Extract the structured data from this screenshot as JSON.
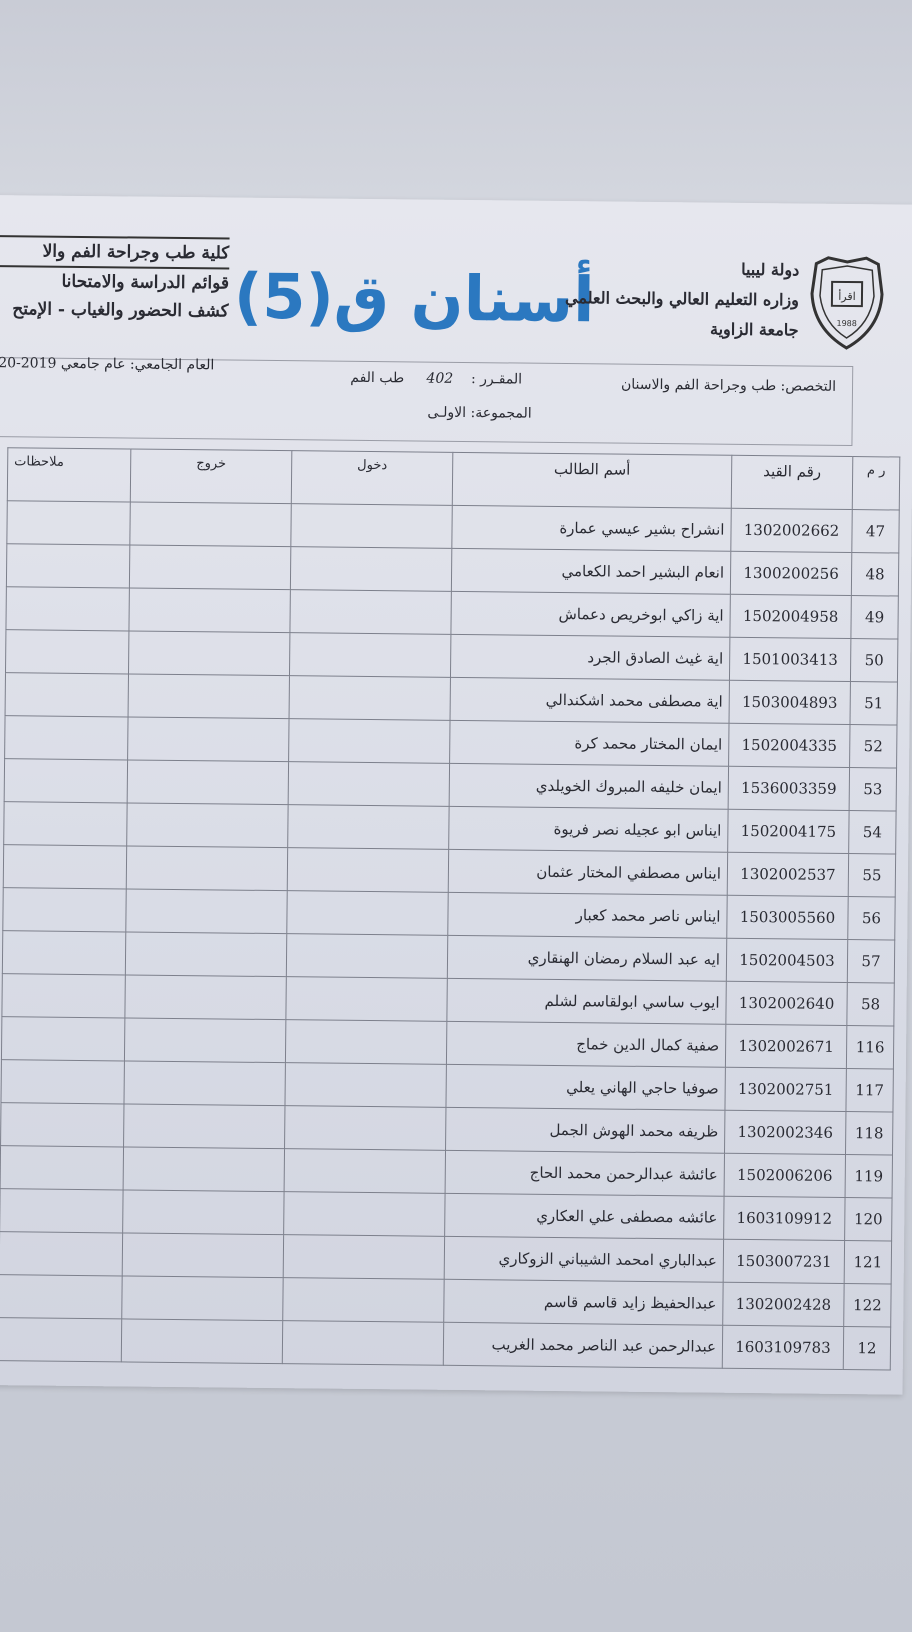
{
  "header": {
    "college": "كلية طب وجراحة الفم والا",
    "department": "قوائم الدراسة والامتحانا",
    "sheet_title": "كشف الحضور والغياب - الإمتح",
    "country": "دولة ليبيا",
    "ministry": "وزاره التعليم العالي والبحث العلمي",
    "university": "جامعة الزاوية",
    "logo_text": "اقرأ",
    "logo_year": "1988",
    "handwritten_note": "أسنان ق(5)"
  },
  "info": {
    "specialty_label": "التخصص:",
    "specialty_value": "طب وجراحة الفم والاسنان",
    "course_label": "المقـرر :",
    "course_code": "402",
    "course_name": "طب الفم",
    "year_label": "العام الجامعي:",
    "year_value": "عام جامعي 2019-20",
    "group_label": "المجموعة:",
    "group_value": "الاولـى"
  },
  "table": {
    "headers": {
      "no": "ر م",
      "id": "رقم القيد",
      "name": "أسم الطالب",
      "in": "دخول",
      "out": "خروج",
      "notes": "ملاحظات"
    },
    "rows": [
      {
        "no": "47",
        "id": "1302002662",
        "name": "انشراح بشير عيسي عمارة"
      },
      {
        "no": "48",
        "id": "1300200256",
        "name": "انعام البشير احمد الكعامي"
      },
      {
        "no": "49",
        "id": "1502004958",
        "name": "اية زاكي ابوخريص دعماش"
      },
      {
        "no": "50",
        "id": "1501003413",
        "name": "اية غيث الصادق الجرد"
      },
      {
        "no": "51",
        "id": "1503004893",
        "name": "اية مصطفى محمد اشكندالي"
      },
      {
        "no": "52",
        "id": "1502004335",
        "name": "ايمان المختار محمد كرة"
      },
      {
        "no": "53",
        "id": "1536003359",
        "name": "ايمان خليفه المبروك الخويلدي"
      },
      {
        "no": "54",
        "id": "1502004175",
        "name": "ايناس ابو عجيله نصر فريوة"
      },
      {
        "no": "55",
        "id": "1302002537",
        "name": "ايناس مصطفي المختار عثمان"
      },
      {
        "no": "56",
        "id": "1503005560",
        "name": "ايناس ناصر محمد كعبار"
      },
      {
        "no": "57",
        "id": "1502004503",
        "name": "ايه عبد السلام رمضان الهنقاري"
      },
      {
        "no": "58",
        "id": "1302002640",
        "name": "ايوب ساسي ابولقاسم لشلم"
      },
      {
        "no": "116",
        "id": "1302002671",
        "name": "صفية كمال الدين خماج"
      },
      {
        "no": "117",
        "id": "1302002751",
        "name": "صوفيا حاجي الهاني يعلي"
      },
      {
        "no": "118",
        "id": "1302002346",
        "name": "ظريفه محمد الهوش الجمل"
      },
      {
        "no": "119",
        "id": "1502006206",
        "name": "عائشة عبدالرحمن محمد الحاج"
      },
      {
        "no": "120",
        "id": "1603109912",
        "name": "عائشه مصطفى علي العكاري"
      },
      {
        "no": "121",
        "id": "1503007231",
        "name": "عبدالباري امحمد الشيباني الزوكاري"
      },
      {
        "no": "122",
        "id": "1302002428",
        "name": "عبدالحفيظ زايد قاسم قاسم"
      },
      {
        "no": "12",
        "id": "1603109783",
        "name": "عبدالرحمن عبد الناصر محمد الغريب"
      }
    ]
  }
}
